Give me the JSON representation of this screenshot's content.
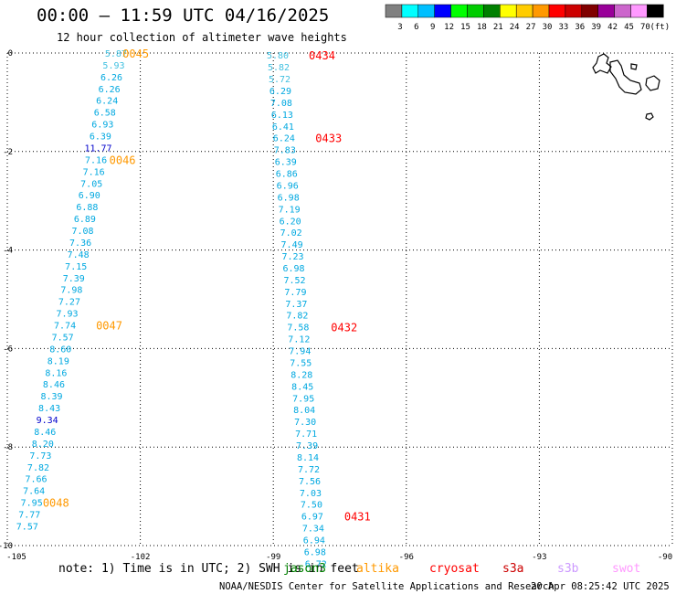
{
  "title": "00:00 – 11:59 UTC 04/16/2025",
  "subtitle": "12 hour collection of altimeter wave heights",
  "legend": {
    "unit": "(ft)",
    "bins": [
      {
        "label": "3",
        "color": "#808080"
      },
      {
        "label": "6",
        "color": "#00ffff"
      },
      {
        "label": "9",
        "color": "#00bfff"
      },
      {
        "label": "12",
        "color": "#0000ff"
      },
      {
        "label": "15",
        "color": "#00ff00"
      },
      {
        "label": "18",
        "color": "#00cc00"
      },
      {
        "label": "21",
        "color": "#008000"
      },
      {
        "label": "24",
        "color": "#ffff00"
      },
      {
        "label": "27",
        "color": "#ffcc00"
      },
      {
        "label": "30",
        "color": "#ff9900"
      },
      {
        "label": "33",
        "color": "#ff0000"
      },
      {
        "label": "36",
        "color": "#cc0000"
      },
      {
        "label": "39",
        "color": "#800000"
      },
      {
        "label": "42",
        "color": "#990099"
      },
      {
        "label": "45",
        "color": "#cc66cc"
      },
      {
        "label": "70",
        "color": "#ff99ff"
      },
      {
        "label": "",
        "color": "#000000"
      }
    ]
  },
  "note": "note: 1) Time is in UTC; 2) SWH is in feet",
  "satellites": [
    {
      "name": "jason3",
      "color": "#008000"
    },
    {
      "name": "altika",
      "color": "#ff9900"
    },
    {
      "name": "cryosat",
      "color": "#ff0000"
    },
    {
      "name": "s3a",
      "color": "#cc0000"
    },
    {
      "name": "s3b",
      "color": "#cc99ff"
    },
    {
      "name": "swot",
      "color": "#ff99ff"
    }
  ],
  "footer": {
    "credit": "NOAA/NESDIS Center for Satellite Applications and Research",
    "timestamp": "20 Apr 08:25:42 UTC 2025"
  },
  "chart_data": {
    "type": "scatter",
    "title": "00:00 – 11:59 UTC 04/16/2025",
    "subtitle": "12 hour collection of altimeter wave heights",
    "xlim": [
      -105,
      -90
    ],
    "ylim": [
      -10,
      0
    ],
    "grid": true,
    "x_ticks": [
      "-105",
      "-102",
      "-99",
      "-96",
      "-93",
      "-90"
    ],
    "y_ticks": [
      "0",
      "-2",
      "-4",
      "-6",
      "-8",
      "-10"
    ],
    "tracks": [
      {
        "name": "altika",
        "color": "#ff9900",
        "points": [
          {
            "lon": -102.55,
            "lat": 0.0,
            "swh": "5.87",
            "color": "#40c0e0"
          },
          {
            "lon": -102.6,
            "lat": -0.24,
            "swh": "5.93",
            "color": "#40c0e0"
          },
          {
            "lon": -102.65,
            "lat": -0.48,
            "swh": "6.26",
            "color": "#00a8e0"
          },
          {
            "lon": -102.7,
            "lat": -0.72,
            "swh": "6.26",
            "color": "#00a8e0"
          },
          {
            "lon": -102.75,
            "lat": -0.96,
            "swh": "6.24",
            "color": "#00a8e0"
          },
          {
            "lon": -102.8,
            "lat": -1.2,
            "swh": "6.58",
            "color": "#00a8e0"
          },
          {
            "lon": -102.85,
            "lat": -1.44,
            "swh": "6.93",
            "color": "#00a8e0"
          },
          {
            "lon": -102.9,
            "lat": -1.68,
            "swh": "6.39",
            "color": "#00a8e0"
          },
          {
            "lon": -102.95,
            "lat": -1.92,
            "swh": "11.77",
            "color": "#0000cc"
          },
          {
            "lon": -103.0,
            "lat": -2.16,
            "swh": "7.16",
            "color": "#00a8e0"
          },
          {
            "lon": -103.05,
            "lat": -2.4,
            "swh": "7.16",
            "color": "#00a8e0"
          },
          {
            "lon": -103.1,
            "lat": -2.64,
            "swh": "7.05",
            "color": "#00a8e0"
          },
          {
            "lon": -103.15,
            "lat": -2.88,
            "swh": "6.90",
            "color": "#00a8e0"
          },
          {
            "lon": -103.2,
            "lat": -3.12,
            "swh": "6.88",
            "color": "#00a8e0"
          },
          {
            "lon": -103.25,
            "lat": -3.36,
            "swh": "6.89",
            "color": "#00a8e0"
          },
          {
            "lon": -103.3,
            "lat": -3.6,
            "swh": "7.08",
            "color": "#00a8e0"
          },
          {
            "lon": -103.35,
            "lat": -3.84,
            "swh": "7.36",
            "color": "#00a8e0"
          },
          {
            "lon": -103.4,
            "lat": -4.08,
            "swh": "7.48",
            "color": "#00a8e0"
          },
          {
            "lon": -103.45,
            "lat": -4.32,
            "swh": "7.15",
            "color": "#00a8e0"
          },
          {
            "lon": -103.5,
            "lat": -4.56,
            "swh": "7.39",
            "color": "#00a8e0"
          },
          {
            "lon": -103.55,
            "lat": -4.8,
            "swh": "7.98",
            "color": "#00a8e0"
          },
          {
            "lon": -103.6,
            "lat": -5.04,
            "swh": "7.27",
            "color": "#00a8e0"
          },
          {
            "lon": -103.65,
            "lat": -5.28,
            "swh": "7.93",
            "color": "#00a8e0"
          },
          {
            "lon": -103.7,
            "lat": -5.52,
            "swh": "7.74",
            "color": "#00a8e0"
          },
          {
            "lon": -103.75,
            "lat": -5.76,
            "swh": "7.57",
            "color": "#00a8e0"
          },
          {
            "lon": -103.8,
            "lat": -6.0,
            "swh": "8.60",
            "color": "#00a8e0"
          },
          {
            "lon": -103.85,
            "lat": -6.24,
            "swh": "8.19",
            "color": "#00a8e0"
          },
          {
            "lon": -103.9,
            "lat": -6.48,
            "swh": "8.16",
            "color": "#00a8e0"
          },
          {
            "lon": -103.95,
            "lat": -6.72,
            "swh": "8.46",
            "color": "#00a8e0"
          },
          {
            "lon": -104.0,
            "lat": -6.96,
            "swh": "8.39",
            "color": "#00a8e0"
          },
          {
            "lon": -104.05,
            "lat": -7.2,
            "swh": "8.43",
            "color": "#00a8e0"
          },
          {
            "lon": -104.1,
            "lat": -7.44,
            "swh": "9.34",
            "color": "#0000cc"
          },
          {
            "lon": -104.15,
            "lat": -7.68,
            "swh": "8.46",
            "color": "#00a8e0"
          },
          {
            "lon": -104.2,
            "lat": -7.92,
            "swh": "8.20",
            "color": "#00a8e0"
          },
          {
            "lon": -104.25,
            "lat": -8.16,
            "swh": "7.73",
            "color": "#00a8e0"
          },
          {
            "lon": -104.3,
            "lat": -8.4,
            "swh": "7.82",
            "color": "#00a8e0"
          },
          {
            "lon": -104.35,
            "lat": -8.64,
            "swh": "7.66",
            "color": "#00a8e0"
          },
          {
            "lon": -104.4,
            "lat": -8.88,
            "swh": "7.64",
            "color": "#00a8e0"
          },
          {
            "lon": -104.45,
            "lat": -9.12,
            "swh": "7.95",
            "color": "#00a8e0"
          },
          {
            "lon": -104.5,
            "lat": -9.36,
            "swh": "7.77",
            "color": "#00a8e0"
          },
          {
            "lon": -104.55,
            "lat": -9.6,
            "swh": "7.57",
            "color": "#00a8e0"
          }
        ],
        "time_labels": [
          {
            "text": "0045",
            "lon": -102.4,
            "lat": 0.0
          },
          {
            "text": "0046",
            "lon": -102.7,
            "lat": -2.16
          },
          {
            "text": "0047",
            "lon": -103.0,
            "lat": -5.52
          },
          {
            "text": "0048",
            "lon": -104.2,
            "lat": -9.12
          }
        ]
      },
      {
        "name": "cryosat",
        "color": "#ff0000",
        "points": [
          {
            "lon": -98.9,
            "lat": -0.04,
            "swh": "5.80",
            "color": "#40c0e0"
          },
          {
            "lon": -98.88,
            "lat": -0.28,
            "swh": "5.82",
            "color": "#40c0e0"
          },
          {
            "lon": -98.86,
            "lat": -0.52,
            "swh": "5.72",
            "color": "#40c0e0"
          },
          {
            "lon": -98.84,
            "lat": -0.76,
            "swh": "6.29",
            "color": "#00a8e0"
          },
          {
            "lon": -98.82,
            "lat": -1.0,
            "swh": "7.08",
            "color": "#00a8e0"
          },
          {
            "lon": -98.8,
            "lat": -1.24,
            "swh": "6.13",
            "color": "#00a8e0"
          },
          {
            "lon": -98.78,
            "lat": -1.48,
            "swh": "6.41",
            "color": "#00a8e0"
          },
          {
            "lon": -98.76,
            "lat": -1.72,
            "swh": "6.24",
            "color": "#00a8e0"
          },
          {
            "lon": -98.74,
            "lat": -1.96,
            "swh": "7.83",
            "color": "#00a8e0"
          },
          {
            "lon": -98.72,
            "lat": -2.2,
            "swh": "6.39",
            "color": "#00a8e0"
          },
          {
            "lon": -98.7,
            "lat": -2.44,
            "swh": "6.86",
            "color": "#00a8e0"
          },
          {
            "lon": -98.68,
            "lat": -2.68,
            "swh": "6.96",
            "color": "#00a8e0"
          },
          {
            "lon": -98.66,
            "lat": -2.92,
            "swh": "6.98",
            "color": "#00a8e0"
          },
          {
            "lon": -98.64,
            "lat": -3.16,
            "swh": "7.19",
            "color": "#00a8e0"
          },
          {
            "lon": -98.62,
            "lat": -3.4,
            "swh": "6.20",
            "color": "#00a8e0"
          },
          {
            "lon": -98.6,
            "lat": -3.64,
            "swh": "7.02",
            "color": "#00a8e0"
          },
          {
            "lon": -98.58,
            "lat": -3.88,
            "swh": "7.49",
            "color": "#00a8e0"
          },
          {
            "lon": -98.56,
            "lat": -4.12,
            "swh": "7.23",
            "color": "#00a8e0"
          },
          {
            "lon": -98.54,
            "lat": -4.36,
            "swh": "6.98",
            "color": "#00a8e0"
          },
          {
            "lon": -98.52,
            "lat": -4.6,
            "swh": "7.52",
            "color": "#00a8e0"
          },
          {
            "lon": -98.5,
            "lat": -4.84,
            "swh": "7.79",
            "color": "#00a8e0"
          },
          {
            "lon": -98.48,
            "lat": -5.08,
            "swh": "7.37",
            "color": "#00a8e0"
          },
          {
            "lon": -98.46,
            "lat": -5.32,
            "swh": "7.82",
            "color": "#00a8e0"
          },
          {
            "lon": -98.44,
            "lat": -5.56,
            "swh": "7.58",
            "color": "#00a8e0"
          },
          {
            "lon": -98.42,
            "lat": -5.8,
            "swh": "7.12",
            "color": "#00a8e0"
          },
          {
            "lon": -98.4,
            "lat": -6.04,
            "swh": "7.94",
            "color": "#00a8e0"
          },
          {
            "lon": -98.38,
            "lat": -6.28,
            "swh": "7.55",
            "color": "#00a8e0"
          },
          {
            "lon": -98.36,
            "lat": -6.52,
            "swh": "8.28",
            "color": "#00a8e0"
          },
          {
            "lon": -98.34,
            "lat": -6.76,
            "swh": "8.45",
            "color": "#00a8e0"
          },
          {
            "lon": -98.32,
            "lat": -7.0,
            "swh": "7.95",
            "color": "#00a8e0"
          },
          {
            "lon": -98.3,
            "lat": -7.24,
            "swh": "8.04",
            "color": "#00a8e0"
          },
          {
            "lon": -98.28,
            "lat": -7.48,
            "swh": "7.30",
            "color": "#00a8e0"
          },
          {
            "lon": -98.26,
            "lat": -7.72,
            "swh": "7.71",
            "color": "#00a8e0"
          },
          {
            "lon": -98.24,
            "lat": -7.96,
            "swh": "7.39",
            "color": "#00a8e0"
          },
          {
            "lon": -98.22,
            "lat": -8.2,
            "swh": "8.14",
            "color": "#00a8e0"
          },
          {
            "lon": -98.2,
            "lat": -8.44,
            "swh": "7.72",
            "color": "#00a8e0"
          },
          {
            "lon": -98.18,
            "lat": -8.68,
            "swh": "7.56",
            "color": "#00a8e0"
          },
          {
            "lon": -98.16,
            "lat": -8.92,
            "swh": "7.03",
            "color": "#00a8e0"
          },
          {
            "lon": -98.14,
            "lat": -9.16,
            "swh": "7.50",
            "color": "#00a8e0"
          },
          {
            "lon": -98.12,
            "lat": -9.4,
            "swh": "6.97",
            "color": "#00a8e0"
          },
          {
            "lon": -98.1,
            "lat": -9.64,
            "swh": "7.34",
            "color": "#00a8e0"
          },
          {
            "lon": -98.08,
            "lat": -9.88,
            "swh": "6.94",
            "color": "#00a8e0"
          },
          {
            "lon": -98.06,
            "lat": -10.12,
            "swh": "6.98",
            "color": "#00a8e0"
          },
          {
            "lon": -98.04,
            "lat": -10.36,
            "swh": "6.72",
            "color": "#00a8e0"
          }
        ],
        "time_labels": [
          {
            "text": "0434",
            "lon": -98.2,
            "lat": -0.04
          },
          {
            "text": "0433",
            "lon": -98.05,
            "lat": -1.72
          },
          {
            "text": "0432",
            "lon": -97.7,
            "lat": -5.56
          },
          {
            "text": "0431",
            "lon": -97.4,
            "lat": -9.4
          }
        ]
      }
    ]
  }
}
